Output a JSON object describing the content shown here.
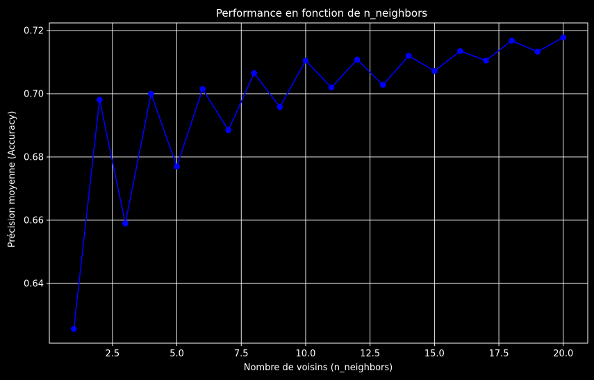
{
  "chart_data": {
    "type": "line",
    "title": "Performance en fonction de n_neighbors",
    "xlabel": "Nombre de voisins (n_neighbors)",
    "ylabel": "Précision moyenne (Accuracy)",
    "x": [
      1,
      2,
      3,
      4,
      5,
      6,
      7,
      8,
      9,
      10,
      11,
      12,
      13,
      14,
      15,
      16,
      17,
      18,
      19,
      20
    ],
    "series": [
      {
        "values": [
          0.6256,
          0.6981,
          0.659,
          0.7,
          0.677,
          0.7015,
          0.6885,
          0.7065,
          0.6958,
          0.7105,
          0.702,
          0.7108,
          0.7028,
          0.712,
          0.7072,
          0.7135,
          0.7105,
          0.7168,
          0.7133,
          0.7178
        ],
        "color": "#0000ff",
        "marker": "circle"
      }
    ],
    "xlim": [
      0.05,
      20.95
    ],
    "ylim": [
      0.6211,
      0.7224
    ],
    "xticks": [
      2.5,
      5.0,
      7.5,
      10.0,
      12.5,
      15.0,
      17.5,
      20.0
    ],
    "xtick_labels": [
      "2.5",
      "5.0",
      "7.5",
      "10.0",
      "12.5",
      "15.0",
      "17.5",
      "20.0"
    ],
    "yticks": [
      0.64,
      0.66,
      0.68,
      0.7,
      0.72
    ],
    "ytick_labels": [
      "0.64",
      "0.66",
      "0.68",
      "0.70",
      "0.72"
    ],
    "grid": true,
    "background": "#000000",
    "foreground": "#ffffff"
  }
}
